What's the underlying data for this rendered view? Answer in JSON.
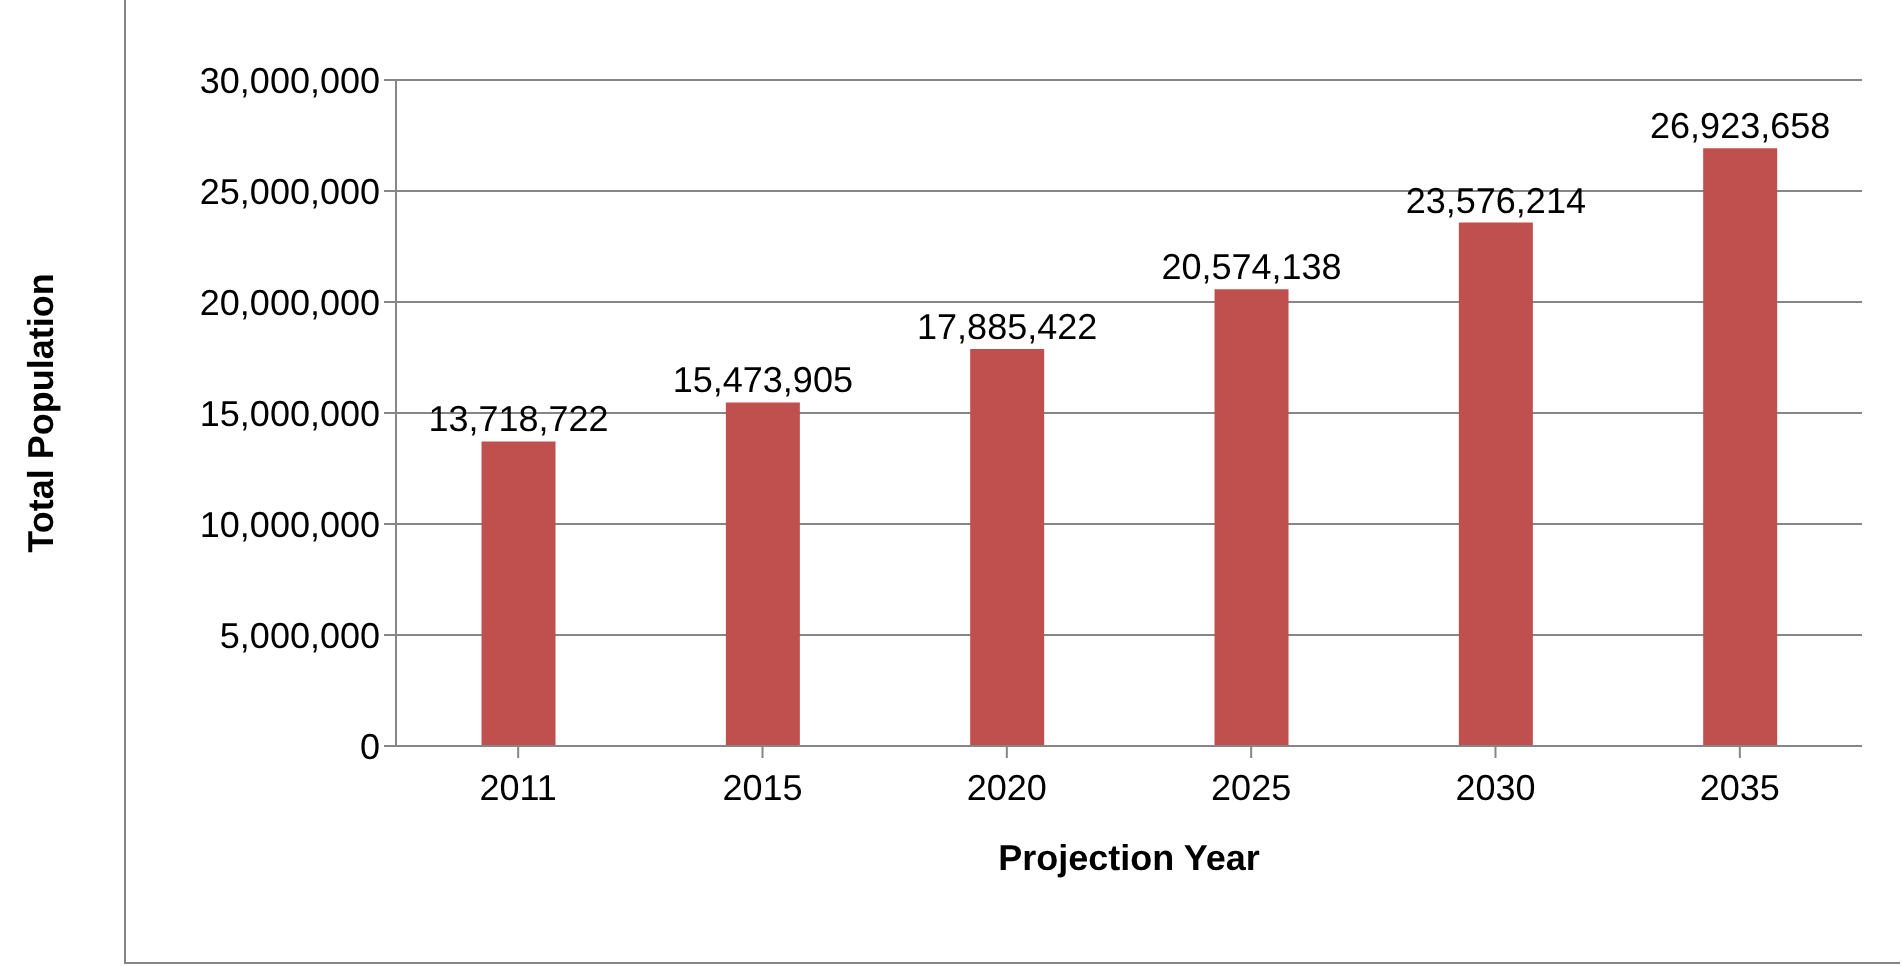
{
  "chart_data": {
    "type": "bar",
    "xlabel": "Projection Year",
    "ylabel": "Total Population",
    "categories": [
      "2011",
      "2015",
      "2020",
      "2025",
      "2030",
      "2035"
    ],
    "values": [
      13718722,
      15473905,
      17885422,
      20574138,
      23576214,
      26923658
    ],
    "value_labels": [
      "13,718,722",
      "15,473,905",
      "17,885,422",
      "20,574,138",
      "23,576,214",
      "26,923,658"
    ],
    "color": "#c0504d",
    "ylim": [
      0,
      30000000
    ],
    "yticks": [
      0,
      {
        "value": 5000000,
        "label": "5,000,000"
      },
      {
        "value": 10000000,
        "label": "10,000,000"
      },
      {
        "value": 15000000,
        "label": "15,000,000"
      },
      {
        "value": 20000000,
        "label": "20,000,000"
      },
      {
        "value": 25000000,
        "label": "25,000,000"
      },
      {
        "value": 30000000,
        "label": "30,000,000"
      }
    ],
    "grid": "y",
    "legend": false
  }
}
